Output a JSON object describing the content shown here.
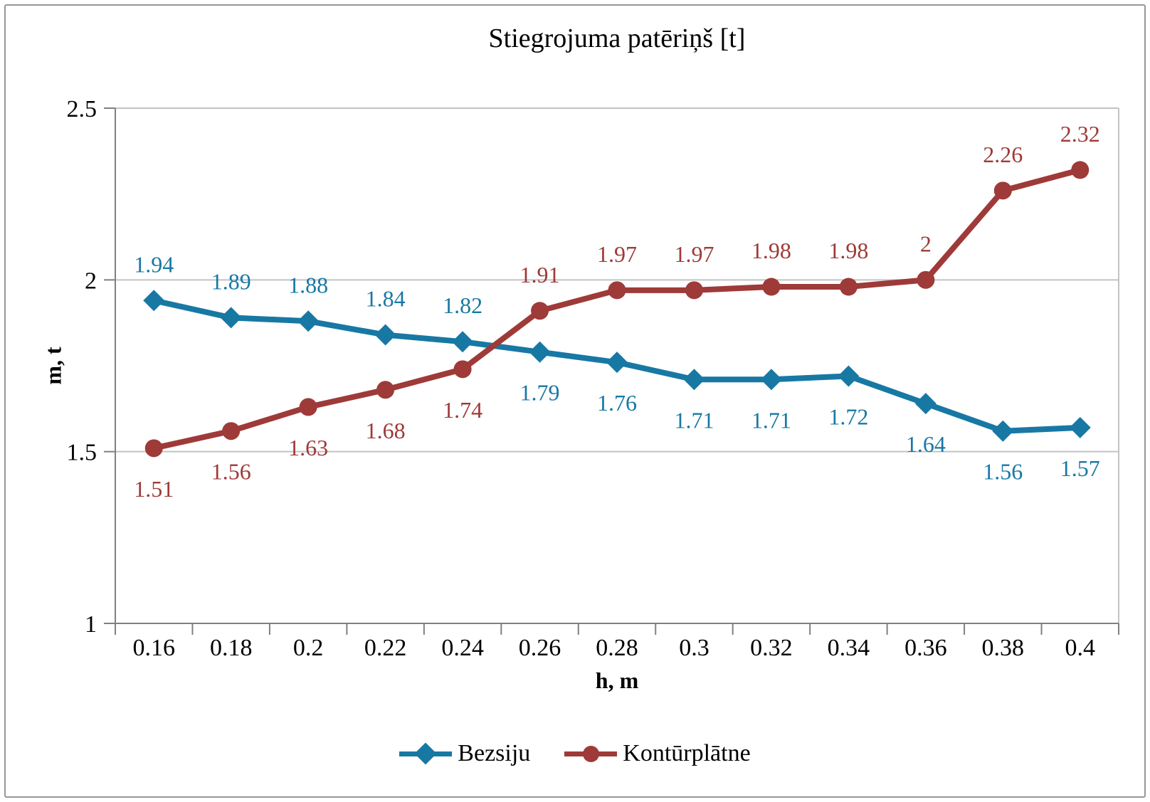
{
  "chart_title": "Stiegrojuma patēriņš [t]",
  "colors": {
    "bezsiju": "#1878A4",
    "konturplatne": "#9E3A38",
    "gridline": "#C3C3C3",
    "axis": "#808080",
    "text": "#000000",
    "frame_border": "#979797",
    "background": "#FFFFFF"
  },
  "chart_data": {
    "type": "line",
    "title": "Stiegrojuma patēriņš [t]",
    "xlabel": "h, m",
    "ylabel": "m, t",
    "x": [
      0.16,
      0.18,
      0.2,
      0.22,
      0.24,
      0.26,
      0.28,
      0.3,
      0.32,
      0.34,
      0.36,
      0.38,
      0.4
    ],
    "x_tick_labels": [
      "0.16",
      "0.18",
      "0.2",
      "0.22",
      "0.24",
      "0.26",
      "0.28",
      "0.3",
      "0.32",
      "0.34",
      "0.36",
      "0.38",
      "0.4"
    ],
    "ylim": [
      1,
      2.5
    ],
    "y_ticks": [
      1,
      1.5,
      2,
      2.5
    ],
    "y_tick_labels": [
      "1",
      "1.5",
      "2",
      "2.5"
    ],
    "grid": "horizontal",
    "legend_position": "bottom-center",
    "series": [
      {
        "name": "Bezsiju",
        "marker": "diamond",
        "color": "#1878A4",
        "values": [
          1.94,
          1.89,
          1.88,
          1.84,
          1.82,
          1.79,
          1.76,
          1.71,
          1.71,
          1.72,
          1.64,
          1.56,
          1.57
        ],
        "labels": [
          "1.94",
          "1.89",
          "1.88",
          "1.84",
          "1.82",
          "1.79",
          "1.76",
          "1.71",
          "1.71",
          "1.72",
          "1.64",
          "1.56",
          "1.57"
        ],
        "label_side": [
          "above",
          "above",
          "above",
          "above",
          "above",
          "below",
          "below",
          "below",
          "below",
          "below",
          "below",
          "below",
          "below"
        ]
      },
      {
        "name": "Kontūrplātne",
        "marker": "circle",
        "color": "#9E3A38",
        "values": [
          1.51,
          1.56,
          1.63,
          1.68,
          1.74,
          1.91,
          1.97,
          1.97,
          1.98,
          1.98,
          2,
          2.26,
          2.32
        ],
        "labels": [
          "1.51",
          "1.56",
          "1.63",
          "1.68",
          "1.74",
          "1.91",
          "1.97",
          "1.97",
          "1.98",
          "1.98",
          "2",
          "2.26",
          "2.32"
        ],
        "label_side": [
          "below",
          "below",
          "below",
          "below",
          "below",
          "above",
          "above",
          "above",
          "above",
          "above",
          "above",
          "above",
          "above"
        ]
      }
    ]
  }
}
